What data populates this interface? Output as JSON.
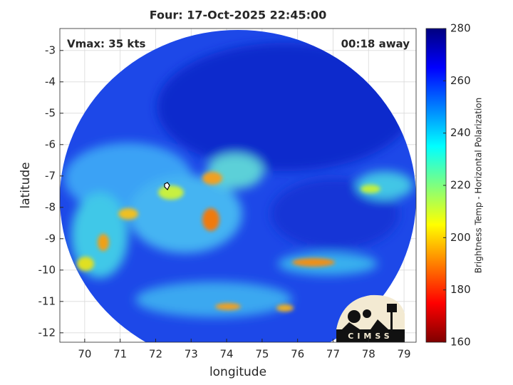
{
  "chart_data": {
    "type": "heatmap",
    "title": "Four: 17-Oct-2025 22:45:00",
    "annotations": [
      "Vmax: 35 kts",
      "00:18 away"
    ],
    "xlabel": "longitude",
    "ylabel": "latitude",
    "xlim": [
      69.3,
      79.34
    ],
    "ylim": [
      -12.3,
      -2.3
    ],
    "xticks": [
      70,
      71,
      72,
      73,
      74,
      75,
      76,
      77,
      78,
      79
    ],
    "yticks": [
      -12,
      -11,
      -10,
      -9,
      -8,
      -7,
      -6,
      -5,
      -4,
      -3
    ],
    "grid": true,
    "colormap": "jet",
    "colorbar": {
      "label": "Brightness Temp - Horizontal Polarization",
      "lim": [
        160,
        280
      ],
      "ticks": [
        160,
        180,
        200,
        220,
        240,
        260,
        280
      ]
    },
    "logo_text": "CIMSS"
  }
}
